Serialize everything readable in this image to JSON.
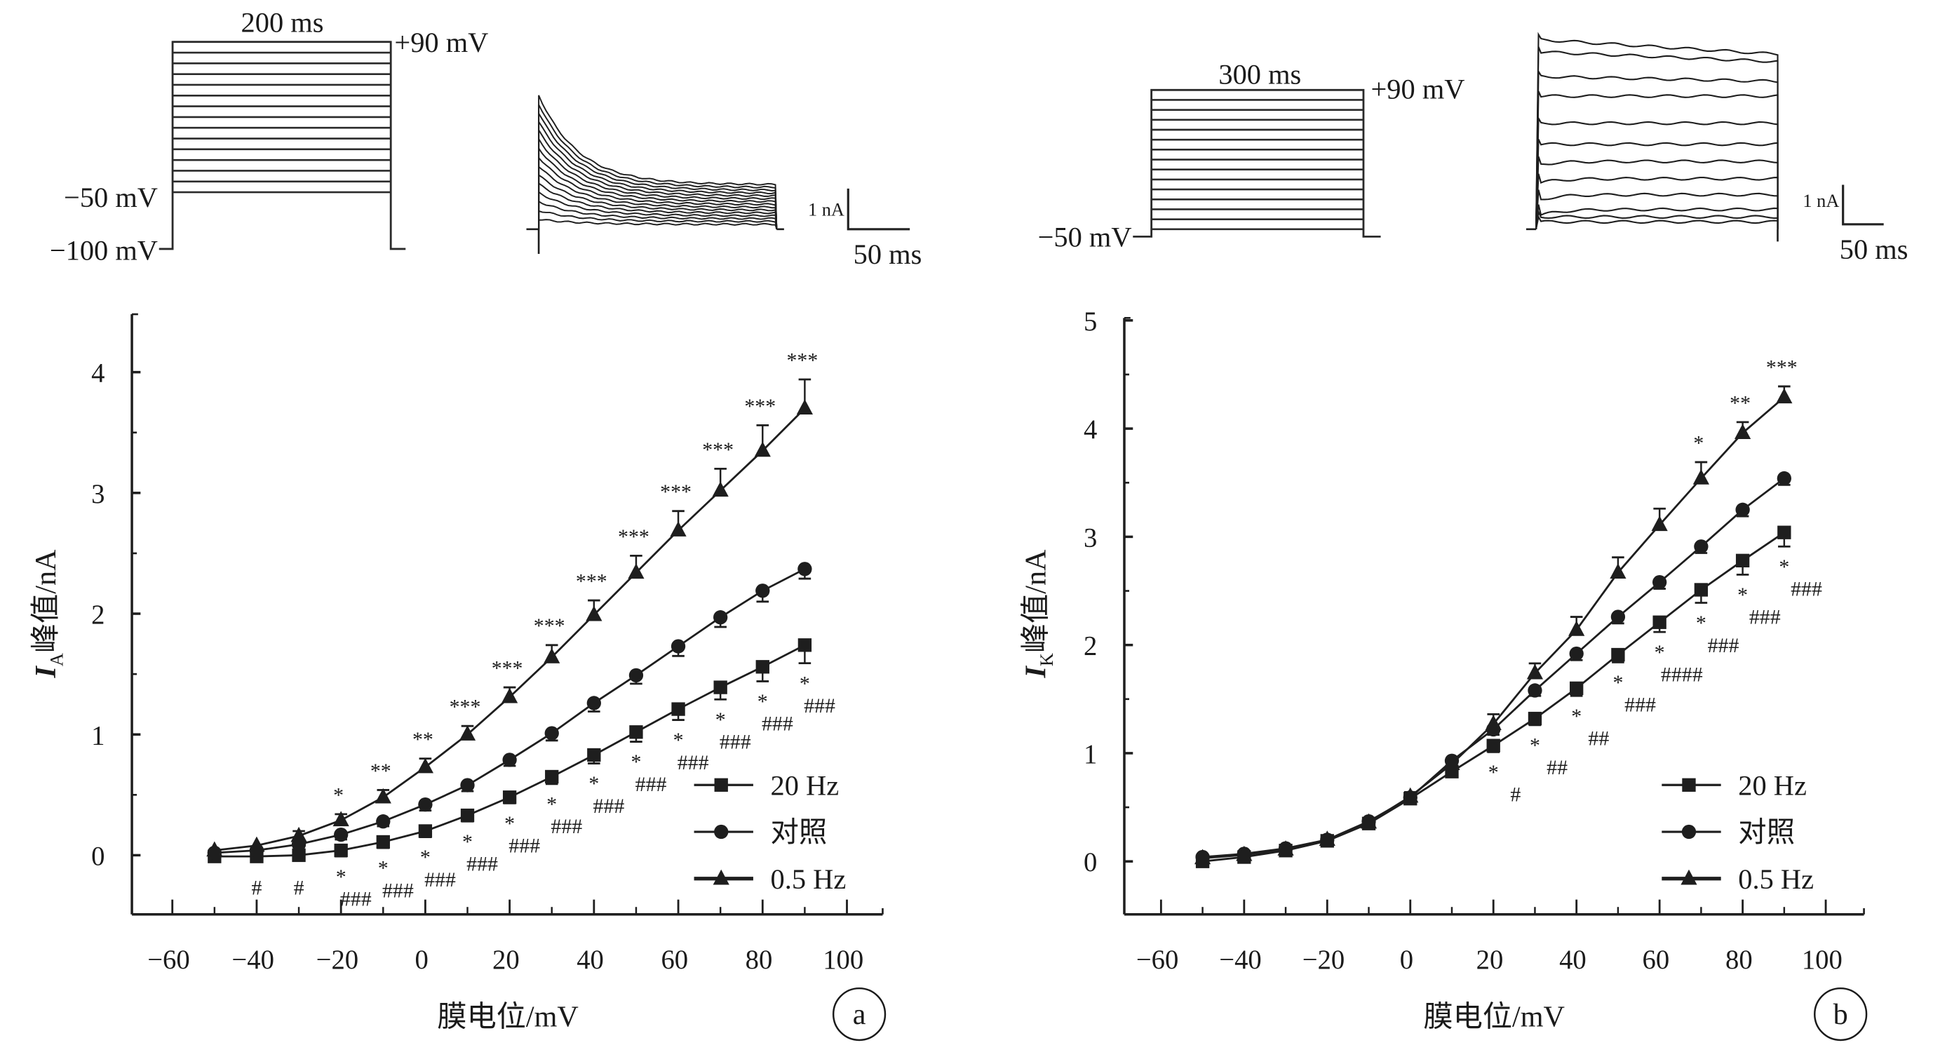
{
  "figure": {
    "panel_a": {
      "stimulus": {
        "duration_label": "200 ms",
        "top_label": "+90 mV",
        "start_label": "−50 mV",
        "holding_label": "−100 mV",
        "steps": 15
      },
      "trace_scale": {
        "current_label": "1 nA",
        "time_label": "50 ms"
      },
      "letter": "a"
    },
    "panel_b": {
      "stimulus": {
        "duration_label": "300 ms",
        "top_label": "+90 mV",
        "start_label": "−50 mV",
        "steps": 15
      },
      "trace_scale": {
        "current_label": "1 nA",
        "time_label": "50 ms"
      },
      "letter": "b"
    }
  },
  "chart_data": [
    {
      "type": "line",
      "panel": "a",
      "title": "",
      "xlabel": "膜电位/mV",
      "ylabel_main": "I",
      "ylabel_sub": "A",
      "ylabel_rest": "峰值/nA",
      "xlim": [
        -70,
        110
      ],
      "ylim": [
        -0.5,
        4.5
      ],
      "xticks": [
        -60,
        -40,
        -20,
        0,
        20,
        40,
        60,
        80,
        100
      ],
      "yticks": [
        0,
        1,
        2,
        3,
        4
      ],
      "grid": false,
      "legend_position": "bottom-right",
      "x": [
        -50,
        -40,
        -30,
        -20,
        -10,
        0,
        10,
        20,
        30,
        40,
        50,
        60,
        70,
        80,
        90
      ],
      "series": [
        {
          "name": "20 Hz",
          "marker": "square",
          "values": [
            -0.01,
            -0.01,
            0.0,
            0.04,
            0.11,
            0.2,
            0.33,
            0.48,
            0.65,
            0.83,
            1.02,
            1.21,
            1.39,
            1.56,
            1.74
          ],
          "errors": [
            0.03,
            0.03,
            0.04,
            0.05,
            0.05,
            0.05,
            0.05,
            0.05,
            0.06,
            0.07,
            0.08,
            0.09,
            0.1,
            0.12,
            0.15
          ],
          "error_dir": "down",
          "annotations_below": [
            {
              "x": -40,
              "star": "",
              "hash": "#"
            },
            {
              "x": -30,
              "star": "",
              "hash": "#"
            },
            {
              "x": -20,
              "star": "*",
              "hash": "###"
            },
            {
              "x": -10,
              "star": "*",
              "hash": "###"
            },
            {
              "x": 0,
              "star": "*",
              "hash": "###"
            },
            {
              "x": 10,
              "star": "*",
              "hash": "###"
            },
            {
              "x": 20,
              "star": "*",
              "hash": "###"
            },
            {
              "x": 30,
              "star": "*",
              "hash": "###"
            },
            {
              "x": 40,
              "star": "*",
              "hash": "###"
            },
            {
              "x": 50,
              "star": "*",
              "hash": "###"
            },
            {
              "x": 60,
              "star": "*",
              "hash": "###"
            },
            {
              "x": 70,
              "star": "*",
              "hash": "###"
            },
            {
              "x": 80,
              "star": "*",
              "hash": "###"
            },
            {
              "x": 90,
              "star": "*",
              "hash": "###"
            }
          ]
        },
        {
          "name": "对照",
          "marker": "circle",
          "values": [
            0.02,
            0.04,
            0.09,
            0.17,
            0.28,
            0.42,
            0.58,
            0.79,
            1.01,
            1.26,
            1.49,
            1.73,
            1.97,
            2.19,
            2.37
          ],
          "errors": [
            0.03,
            0.03,
            0.03,
            0.04,
            0.04,
            0.05,
            0.05,
            0.05,
            0.06,
            0.07,
            0.07,
            0.08,
            0.08,
            0.09,
            0.08
          ],
          "error_dir": "down",
          "annotations_above": []
        },
        {
          "name": "0.5 Hz",
          "marker": "triangle",
          "values": [
            0.04,
            0.08,
            0.16,
            0.29,
            0.48,
            0.73,
            1.0,
            1.31,
            1.64,
            1.99,
            2.34,
            2.69,
            3.02,
            3.35,
            3.7
          ],
          "errors": [
            0.03,
            0.03,
            0.04,
            0.05,
            0.06,
            0.07,
            0.07,
            0.08,
            0.1,
            0.12,
            0.14,
            0.16,
            0.18,
            0.21,
            0.24
          ],
          "error_dir": "up",
          "annotations_above": [
            {
              "x": -20,
              "text": "*"
            },
            {
              "x": -10,
              "text": "**"
            },
            {
              "x": 0,
              "text": "**"
            },
            {
              "x": 10,
              "text": "***"
            },
            {
              "x": 20,
              "text": "***"
            },
            {
              "x": 30,
              "text": "***"
            },
            {
              "x": 40,
              "text": "***"
            },
            {
              "x": 50,
              "text": "***"
            },
            {
              "x": 60,
              "text": "***"
            },
            {
              "x": 70,
              "text": "***"
            },
            {
              "x": 80,
              "text": "***"
            },
            {
              "x": 90,
              "text": "***"
            }
          ]
        }
      ]
    },
    {
      "type": "line",
      "panel": "b",
      "title": "",
      "xlabel": "膜电位/mV",
      "ylabel_main": "I",
      "ylabel_sub": "K",
      "ylabel_rest": "峰值/nA",
      "xlim": [
        -70,
        110
      ],
      "ylim": [
        -0.5,
        5
      ],
      "xticks": [
        -60,
        -40,
        -20,
        0,
        20,
        40,
        60,
        80,
        100
      ],
      "yticks": [
        0,
        1,
        2,
        3,
        4,
        5
      ],
      "grid": false,
      "legend_position": "bottom-right",
      "x": [
        -50,
        -40,
        -30,
        -20,
        -10,
        0,
        10,
        20,
        30,
        40,
        50,
        60,
        70,
        80,
        90
      ],
      "series": [
        {
          "name": "20 Hz",
          "marker": "square",
          "values": [
            0.0,
            0.04,
            0.1,
            0.19,
            0.35,
            0.58,
            0.83,
            1.07,
            1.32,
            1.6,
            1.91,
            2.21,
            2.51,
            2.78,
            3.04
          ],
          "errors": [
            0.03,
            0.03,
            0.03,
            0.03,
            0.04,
            0.04,
            0.05,
            0.06,
            0.06,
            0.07,
            0.07,
            0.09,
            0.12,
            0.13,
            0.13
          ],
          "error_dir": "down",
          "annotations_below": [
            {
              "x": 20,
              "star": "*",
              "hash": "#"
            },
            {
              "x": 30,
              "star": "*",
              "hash": "##"
            },
            {
              "x": 40,
              "star": "*",
              "hash": "##"
            },
            {
              "x": 50,
              "star": "*",
              "hash": "###"
            },
            {
              "x": 60,
              "star": "*",
              "hash": "####"
            },
            {
              "x": 70,
              "star": "*",
              "hash": "###"
            },
            {
              "x": 80,
              "star": "*",
              "hash": "###"
            },
            {
              "x": 90,
              "star": "*",
              "hash": "###"
            }
          ]
        },
        {
          "name": "对照",
          "marker": "circle",
          "values": [
            0.04,
            0.07,
            0.12,
            0.2,
            0.37,
            0.59,
            0.93,
            1.22,
            1.58,
            1.92,
            2.26,
            2.58,
            2.91,
            3.25,
            3.54
          ],
          "errors": [
            0.03,
            0.03,
            0.03,
            0.03,
            0.04,
            0.04,
            0.05,
            0.05,
            0.05,
            0.06,
            0.06,
            0.06,
            0.06,
            0.06,
            0.06
          ],
          "error_dir": "down",
          "annotations_above": []
        },
        {
          "name": "0.5 Hz",
          "marker": "triangle",
          "values": [
            0.03,
            0.06,
            0.11,
            0.2,
            0.36,
            0.6,
            0.9,
            1.27,
            1.74,
            2.14,
            2.67,
            3.11,
            3.54,
            3.96,
            4.29
          ],
          "errors": [
            0.03,
            0.03,
            0.03,
            0.03,
            0.04,
            0.04,
            0.05,
            0.09,
            0.09,
            0.12,
            0.14,
            0.15,
            0.15,
            0.1,
            0.1
          ],
          "error_dir": "up",
          "annotations_above": [
            {
              "x": 70,
              "text": "*"
            },
            {
              "x": 80,
              "text": "**"
            },
            {
              "x": 90,
              "text": "***"
            }
          ]
        }
      ]
    }
  ]
}
